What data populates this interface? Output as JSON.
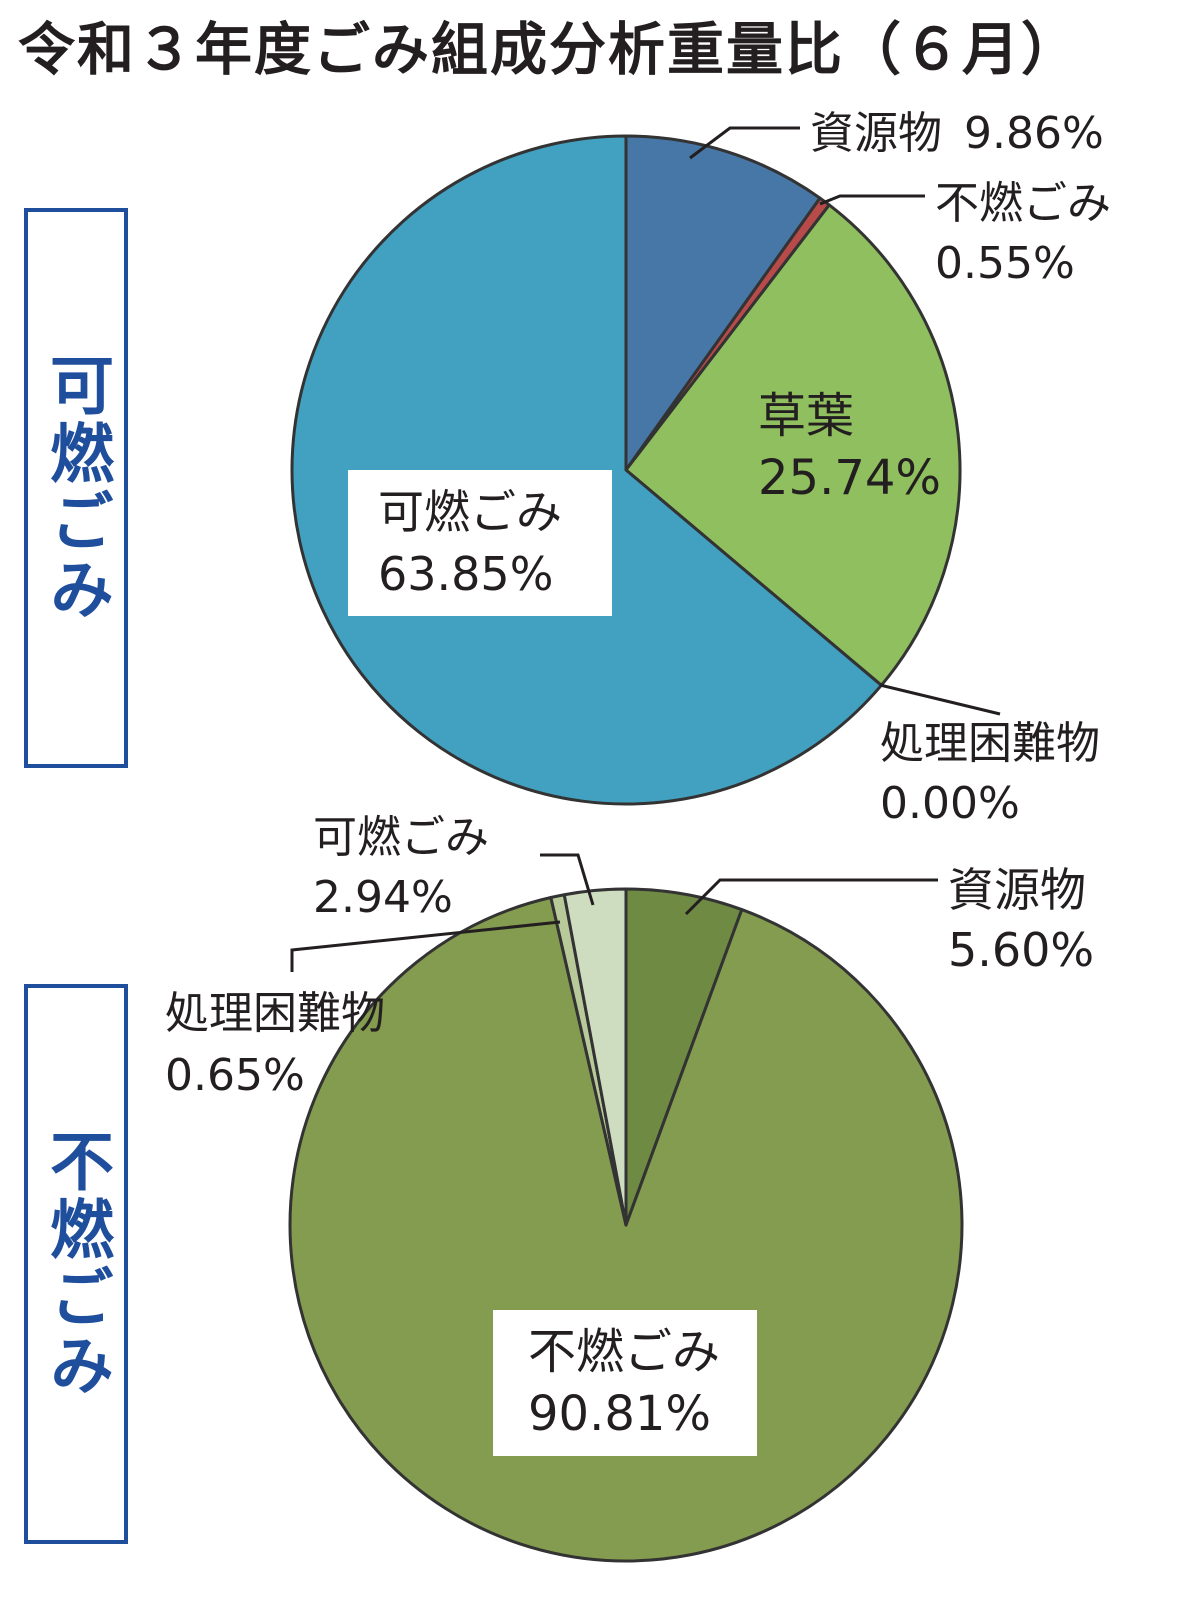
{
  "title": "令和３年度ごみ組成分析重量比（６月）",
  "chart_data": [
    {
      "type": "pie",
      "group_label": "可燃ごみ",
      "slices": [
        {
          "label": "資源物",
          "value": 9.86,
          "value_text": "9.86%",
          "color": "#4777a7"
        },
        {
          "label": "不燃ごみ",
          "value": 0.55,
          "value_text": "0.55%",
          "color": "#b84a4a"
        },
        {
          "label": "草葉",
          "value": 25.74,
          "value_text": "25.74%",
          "color": "#8fbf5e"
        },
        {
          "label": "処理困難物",
          "value": 0.0,
          "value_text": "0.00%",
          "color": "#7a6aa0"
        },
        {
          "label": "可燃ごみ",
          "value": 63.85,
          "value_text": "63.85%",
          "color": "#42a0c1"
        }
      ]
    },
    {
      "type": "pie",
      "group_label": "不燃ごみ",
      "slices": [
        {
          "label": "資源物",
          "value": 5.6,
          "value_text": "5.60%",
          "color": "#6e8a43"
        },
        {
          "label": "不燃ごみ",
          "value": 90.81,
          "value_text": "90.81%",
          "color": "#849c4f"
        },
        {
          "label": "処理困難物",
          "value": 0.65,
          "value_text": "0.65%",
          "color": "#b8c99a"
        },
        {
          "label": "可燃ごみ",
          "value": 2.94,
          "value_text": "2.94%",
          "color": "#cedcbf"
        }
      ]
    }
  ]
}
